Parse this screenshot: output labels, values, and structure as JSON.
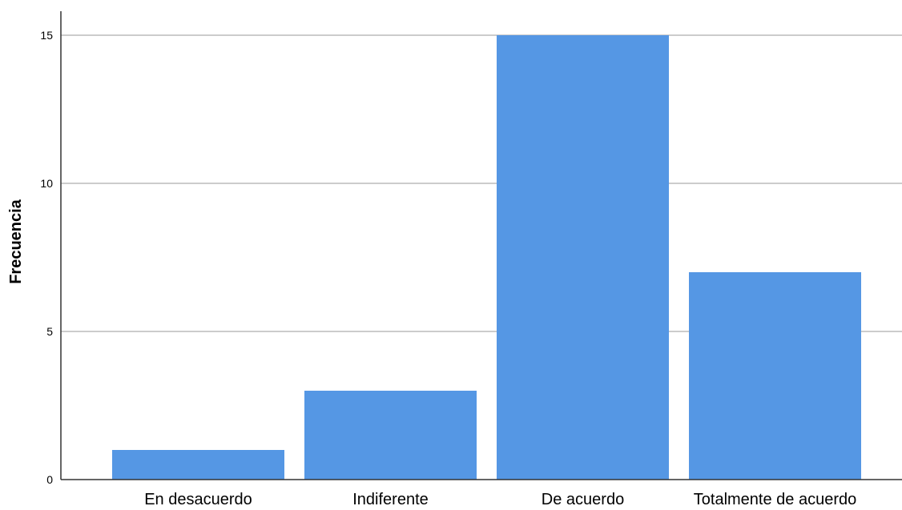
{
  "chart_data": {
    "type": "bar",
    "categories": [
      "En desacuerdo",
      "Indiferente",
      "De acuerdo",
      "Totalmente de acuerdo"
    ],
    "values": [
      1,
      3,
      15,
      7
    ],
    "xlabel": "",
    "ylabel": "Frecuencia",
    "ylim": [
      0,
      15.8
    ],
    "yticks": [
      0,
      5,
      10,
      15
    ],
    "grid": true,
    "bar_color": "#5597e4",
    "gridline_color": "#cccccc",
    "axis_color": "#333333"
  }
}
